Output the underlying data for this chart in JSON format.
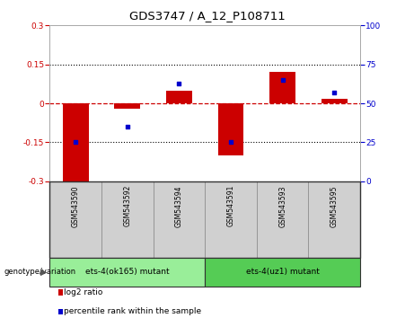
{
  "title": "GDS3747 / A_12_P108711",
  "samples": [
    "GSM543590",
    "GSM543592",
    "GSM543594",
    "GSM543591",
    "GSM543593",
    "GSM543595"
  ],
  "log2_ratio": [
    -0.3,
    -0.02,
    0.05,
    -0.2,
    0.12,
    0.018
  ],
  "percentile_rank": [
    25.0,
    35.0,
    63.0,
    25.0,
    65.0,
    57.0
  ],
  "ylim_left": [
    -0.3,
    0.3
  ],
  "ylim_right": [
    0,
    100
  ],
  "yticks_left": [
    -0.3,
    -0.15,
    0,
    0.15,
    0.3
  ],
  "yticks_right": [
    0,
    25,
    50,
    75,
    100
  ],
  "bar_color": "#cc0000",
  "scatter_color": "#0000cc",
  "zero_line_color": "#cc0000",
  "grid_color": "#000000",
  "bg_plot": "#ffffff",
  "bg_tick_area": "#cccccc",
  "group1_label": "ets-4(ok165) mutant",
  "group2_label": "ets-4(uz1) mutant",
  "group1_color": "#99ee99",
  "group2_color": "#55cc55",
  "group1_indices": [
    0,
    1,
    2
  ],
  "group2_indices": [
    3,
    4,
    5
  ],
  "legend_log2_label": "log2 ratio",
  "legend_pct_label": "percentile rank within the sample",
  "genotype_label": "genotype/variation"
}
